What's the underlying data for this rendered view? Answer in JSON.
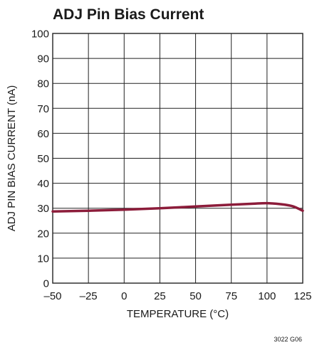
{
  "chart_data": {
    "type": "line",
    "title": "ADJ Pin Bias Current",
    "xlabel": "TEMPERATURE (°C)",
    "ylabel": "ADJ PIN BIAS CURRENT (nA)",
    "xlim": [
      -50,
      125
    ],
    "ylim": [
      0,
      100
    ],
    "x_ticks": [
      -50,
      -25,
      0,
      25,
      50,
      75,
      100,
      125
    ],
    "x_tick_labels": [
      "–50",
      "–25",
      "0",
      "25",
      "50",
      "75",
      "100",
      "125"
    ],
    "y_ticks": [
      0,
      10,
      20,
      30,
      40,
      50,
      60,
      70,
      80,
      90,
      100
    ],
    "y_tick_labels": [
      "0",
      "10",
      "20",
      "30",
      "40",
      "50",
      "60",
      "70",
      "80",
      "90",
      "100"
    ],
    "grid": true,
    "series": [
      {
        "color": "#8c1c3a",
        "x": [
          -50,
          -25,
          0,
          25,
          50,
          75,
          90,
          100,
          110,
          118,
          125
        ],
        "y": [
          28.7,
          29.0,
          29.4,
          30.0,
          30.7,
          31.4,
          31.8,
          32.0,
          31.6,
          30.8,
          29.0
        ]
      }
    ],
    "figure_code": "3022 G06"
  }
}
